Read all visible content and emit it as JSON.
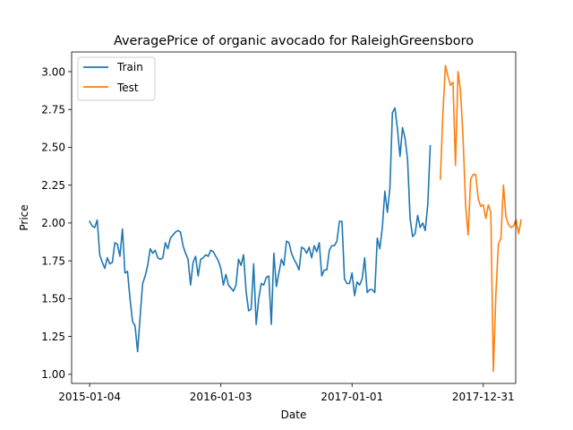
{
  "chart_data": {
    "type": "line",
    "title": "AveragePrice of organic avocado for RaleighGreensboro",
    "xlabel": "Date",
    "ylabel": "Price",
    "x_ticks": [
      "2015-01-04",
      "2016-01-03",
      "2017-01-01",
      "2017-12-31"
    ],
    "x_range": [
      "2014-11-15",
      "2018-03-31"
    ],
    "y_ticks": [
      "1.00",
      "1.25",
      "1.50",
      "1.75",
      "2.00",
      "2.25",
      "2.50",
      "2.75",
      "3.00"
    ],
    "ylim": [
      0.94,
      3.13
    ],
    "grid": false,
    "legend": {
      "placement": "top-left",
      "entries": [
        "Train",
        "Test"
      ]
    },
    "series": [
      {
        "name": "Train",
        "color": "#1f77b4",
        "start_date": "2015-01-04",
        "step_days": 7,
        "values": [
          2.01,
          1.98,
          1.97,
          2.02,
          1.79,
          1.74,
          1.7,
          1.77,
          1.73,
          1.74,
          1.87,
          1.86,
          1.78,
          1.96,
          1.67,
          1.68,
          1.5,
          1.35,
          1.32,
          1.15,
          1.38,
          1.6,
          1.65,
          1.72,
          1.83,
          1.8,
          1.82,
          1.77,
          1.76,
          1.77,
          1.87,
          1.83,
          1.9,
          1.92,
          1.94,
          1.95,
          1.94,
          1.85,
          1.8,
          1.76,
          1.59,
          1.74,
          1.78,
          1.65,
          1.76,
          1.77,
          1.79,
          1.78,
          1.82,
          1.81,
          1.78,
          1.75,
          1.7,
          1.59,
          1.66,
          1.59,
          1.57,
          1.55,
          1.59,
          1.76,
          1.72,
          1.79,
          1.55,
          1.42,
          1.43,
          1.73,
          1.33,
          1.5,
          1.6,
          1.59,
          1.64,
          1.65,
          1.33,
          1.8,
          1.58,
          1.67,
          1.76,
          1.72,
          1.88,
          1.87,
          1.8,
          1.76,
          1.73,
          1.69,
          1.84,
          1.83,
          1.8,
          1.84,
          1.77,
          1.85,
          1.81,
          1.87,
          1.65,
          1.69,
          1.69,
          1.82,
          1.85,
          1.85,
          1.88,
          2.01,
          2.01,
          1.63,
          1.6,
          1.6,
          1.67,
          1.52,
          1.61,
          1.59,
          1.63,
          1.77,
          1.54,
          1.56,
          1.56,
          1.54,
          1.9,
          1.83,
          1.97,
          2.21,
          2.07,
          2.23,
          2.73,
          2.76,
          2.62,
          2.44,
          2.63,
          2.56,
          2.42,
          2.03,
          1.91,
          1.93,
          2.05,
          1.97,
          2.0,
          1.95,
          2.12,
          2.51
        ]
      },
      {
        "name": "Test",
        "color": "#ff7f0e",
        "start_date": "2017-09-03",
        "step_days": 7,
        "values": [
          2.29,
          2.72,
          3.04,
          2.97,
          2.91,
          2.93,
          2.38,
          3.0,
          2.87,
          2.56,
          2.12,
          1.92,
          2.29,
          2.32,
          2.32,
          2.16,
          2.11,
          2.12,
          2.03,
          2.12,
          2.07,
          1.02,
          1.53,
          1.86,
          1.9,
          2.25,
          2.04,
          1.99,
          1.97,
          1.98,
          2.02,
          1.93,
          2.02
        ]
      }
    ]
  }
}
